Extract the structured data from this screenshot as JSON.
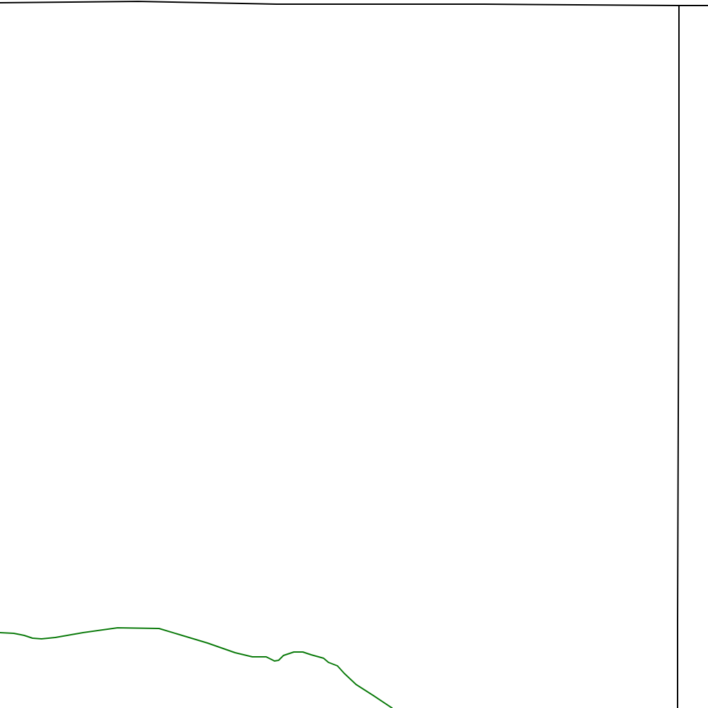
{
  "map": {
    "background_color": "#ffffff",
    "boundary_color": "#000000",
    "feature_color": "#0a7a0a"
  }
}
